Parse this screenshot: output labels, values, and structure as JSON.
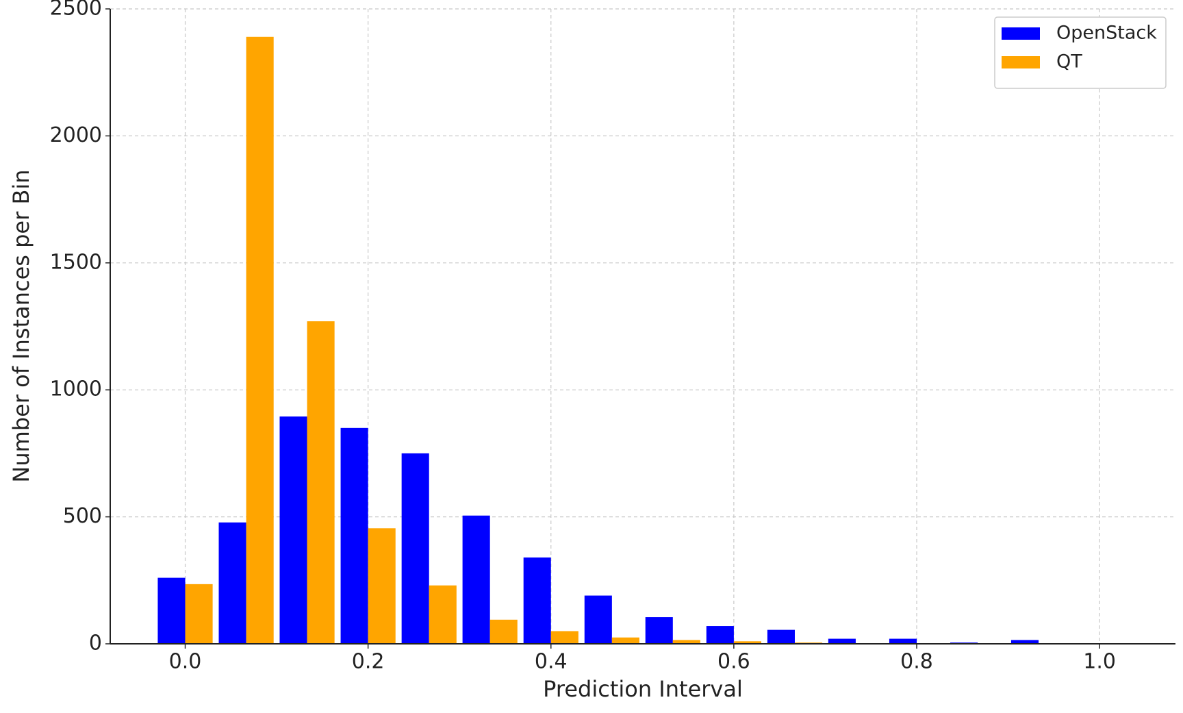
{
  "chart_data": {
    "type": "bar",
    "x_label": "Prediction Interval",
    "y_label": "Number of Instances per Bin",
    "x": [
      0,
      0.0667,
      0.1333,
      0.2,
      0.2667,
      0.3333,
      0.4,
      0.4667,
      0.5333,
      0.6,
      0.6667,
      0.7333,
      0.8,
      0.8667,
      0.9333
    ],
    "series": [
      {
        "name": "OpenStack",
        "color": "#0000ff",
        "values": [
          260,
          478,
          895,
          850,
          750,
          505,
          340,
          190,
          105,
          70,
          55,
          20,
          20,
          5,
          15
        ]
      },
      {
        "name": "QT",
        "color": "#ffa500",
        "values": [
          235,
          2390,
          1270,
          455,
          230,
          95,
          50,
          25,
          15,
          10,
          5,
          2,
          1,
          0,
          0
        ]
      }
    ],
    "xlim": [
      -0.082,
      1.083
    ],
    "ylim": [
      0,
      2500
    ],
    "xticks": [
      {
        "value": 0,
        "label": "0.0"
      },
      0.2,
      0.4,
      0.6,
      0.8,
      {
        "value": 1,
        "label": "1.0"
      }
    ],
    "yticks": [
      0,
      500,
      1000,
      1500,
      2000,
      2500
    ],
    "grid": true,
    "legend": "upper right"
  }
}
